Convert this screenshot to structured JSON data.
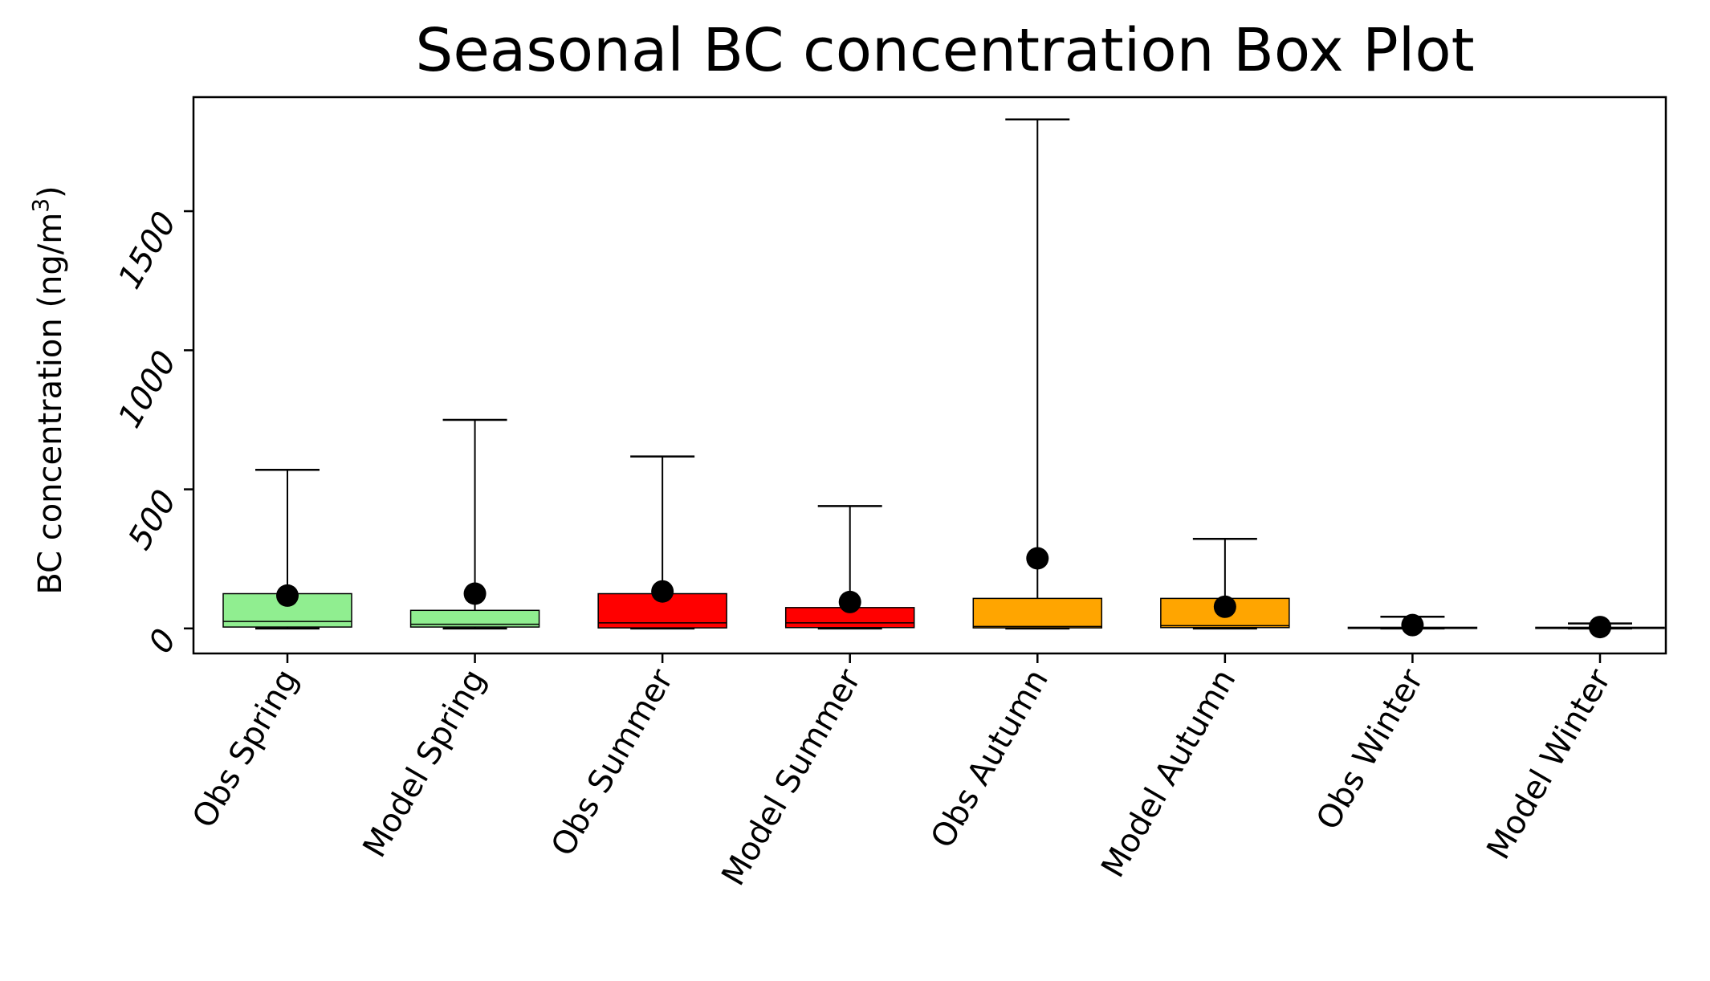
{
  "chart_data": {
    "type": "box",
    "title": "Seasonal BC concentration Box Plot",
    "xlabel": "",
    "ylabel": "BC concentration (ng/m",
    "ylabel_superscript": "3",
    "ylabel_close": ")",
    "ylim": [
      -90,
      1910
    ],
    "yticks": [
      0,
      500,
      1000,
      1500
    ],
    "ytick_labels": [
      "0",
      "500",
      "1000",
      "1500"
    ],
    "grid": false,
    "categories": [
      "Obs Spring",
      "Model Spring",
      "Obs Summer",
      "Model Summer",
      "Obs Autumn",
      "Model Autumn",
      "Obs Winter",
      "Model Winter"
    ],
    "colors": [
      "#90ee90",
      "#90ee90",
      "#ff0000",
      "#ff0000",
      "#ffa500",
      "#ffa500",
      "#ffffff",
      "#ffffff"
    ],
    "mean_marker_color": "#000000",
    "boxes": [
      {
        "whisker_low": 0,
        "q1": 5,
        "median": 25,
        "q3": 125,
        "whisker_high": 570,
        "mean": 118
      },
      {
        "whisker_low": 0,
        "q1": 5,
        "median": 15,
        "q3": 65,
        "whisker_high": 750,
        "mean": 125
      },
      {
        "whisker_low": 0,
        "q1": 2,
        "median": 20,
        "q3": 125,
        "whisker_high": 618,
        "mean": 133
      },
      {
        "whisker_low": 0,
        "q1": 3,
        "median": 20,
        "q3": 75,
        "whisker_high": 440,
        "mean": 95
      },
      {
        "whisker_low": 0,
        "q1": 2,
        "median": 7,
        "q3": 108,
        "whisker_high": 1830,
        "mean": 252
      },
      {
        "whisker_low": 0,
        "q1": 3,
        "median": 10,
        "q3": 108,
        "whisker_high": 322,
        "mean": 78
      },
      {
        "whisker_low": 0,
        "q1": 0,
        "median": 2,
        "q3": 4,
        "whisker_high": 42,
        "mean": 12
      },
      {
        "whisker_low": 0,
        "q1": 0,
        "median": 2,
        "q3": 4,
        "whisker_high": 18,
        "mean": 5
      }
    ]
  }
}
